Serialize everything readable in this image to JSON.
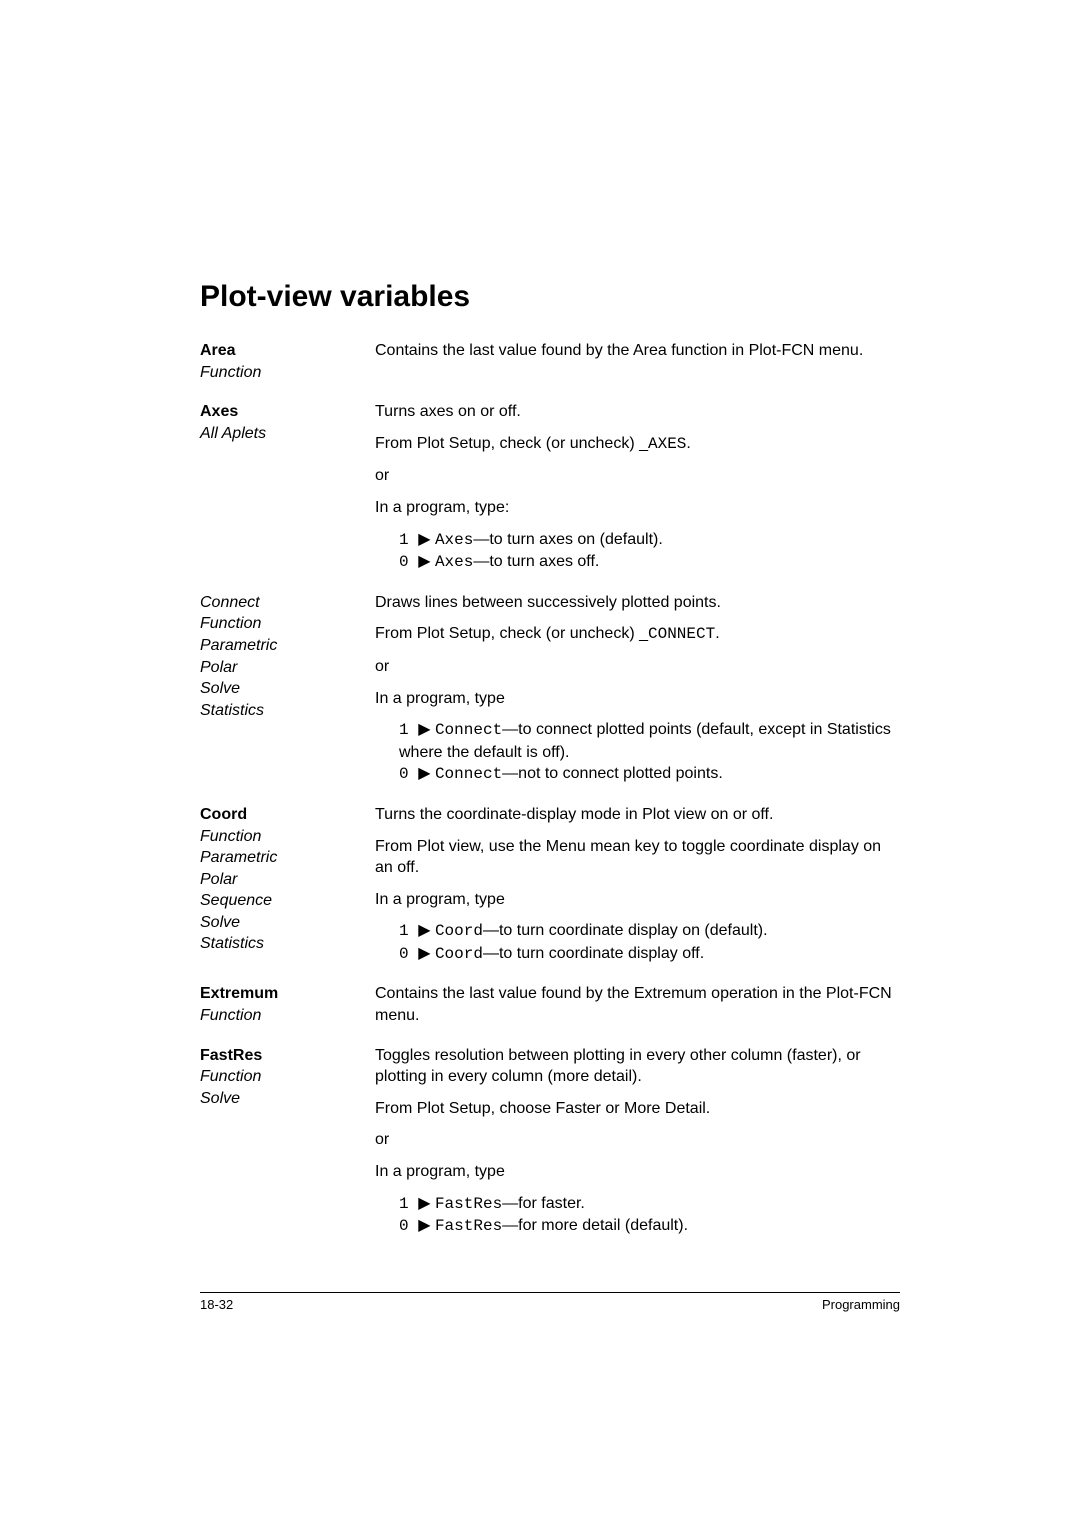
{
  "title": "Plot-view variables",
  "entries": [
    {
      "term_head": "Area",
      "term_sub": "Function",
      "blocks": [
        {
          "type": "p",
          "text": "Contains the last value found by the Area function in Plot-FCN menu."
        }
      ]
    },
    {
      "term_head": "Axes",
      "term_sub": "All Aplets",
      "blocks": [
        {
          "type": "p",
          "text": "Turns axes on or off."
        },
        {
          "type": "p_mixed",
          "pre": "From Plot Setup, check (or uncheck) _",
          "mono": "AXES",
          "post": "."
        },
        {
          "type": "p",
          "text": "or"
        },
        {
          "type": "p",
          "text": "In a program, type:"
        },
        {
          "type": "bullet_mono",
          "mono_pre": "1",
          "arrow": "▶",
          "mono_cmd": "Axes",
          "tail": "—to turn axes on (default)."
        },
        {
          "type": "bullet_mono",
          "mono_pre": "0",
          "arrow": "▶",
          "mono_cmd": "Axes",
          "tail": "—to turn axes off."
        }
      ]
    },
    {
      "term_head": "Connect",
      "term_head_italic": true,
      "term_sub": "Function\nParametric\nPolar\nSolve\nStatistics",
      "blocks": [
        {
          "type": "p",
          "text": "Draws lines between successively plotted points."
        },
        {
          "type": "p_mixed",
          "pre": "From Plot Setup, check (or uncheck) _",
          "mono": "CONNECT",
          "post": "."
        },
        {
          "type": "p",
          "text": "or"
        },
        {
          "type": "p",
          "text": "In a program, type"
        },
        {
          "type": "bullet_mono",
          "mono_pre": "1",
          "arrow": "▶",
          "mono_cmd": "Connect",
          "tail": "—to connect plotted points (default, except in Statistics where the default is off)."
        },
        {
          "type": "bullet_mono",
          "mono_pre": "0",
          "arrow": "▶",
          "mono_cmd": "Connect",
          "tail": "—not to connect plotted points."
        }
      ]
    },
    {
      "term_head": "Coord",
      "term_sub": "Function\nParametric\nPolar\nSequence\nSolve\nStatistics",
      "blocks": [
        {
          "type": "p",
          "text": "Turns the coordinate-display mode in Plot view on or off."
        },
        {
          "type": "p",
          "text": "From Plot view, use the Menu mean key to toggle coordinate display on an off."
        },
        {
          "type": "p",
          "text": "In a program, type"
        },
        {
          "type": "bullet_mono",
          "mono_pre": "1",
          "arrow": "▶",
          "mono_cmd": "Coord",
          "tail": "—to turn coordinate display on (default)."
        },
        {
          "type": "bullet_mono",
          "mono_pre": "0",
          "arrow": "▶",
          "mono_cmd": "Coord",
          "tail": "—to turn coordinate display off."
        }
      ]
    },
    {
      "term_head": "Extremum",
      "term_sub": "Function",
      "blocks": [
        {
          "type": "p",
          "text": "Contains the last value found by the Extremum operation in the Plot-FCN menu."
        }
      ]
    },
    {
      "term_head": "FastRes",
      "term_sub": "Function\nSolve",
      "blocks": [
        {
          "type": "p",
          "text": "Toggles resolution between plotting in every other column (faster), or plotting in every column (more detail)."
        },
        {
          "type": "p",
          "text": "From Plot Setup, choose Faster or More Detail."
        },
        {
          "type": "p",
          "text": "or"
        },
        {
          "type": "p",
          "text": "In a program, type"
        },
        {
          "type": "bullet_mono",
          "mono_pre": "1",
          "arrow": "▶",
          "mono_cmd": "FastRes",
          "tail": "—for faster."
        },
        {
          "type": "bullet_mono",
          "mono_pre": "0",
          "arrow": "▶",
          "mono_cmd": "FastRes",
          "tail": "—for more detail (default)."
        }
      ]
    }
  ],
  "footer_left": "18-32",
  "footer_right": "Programming"
}
